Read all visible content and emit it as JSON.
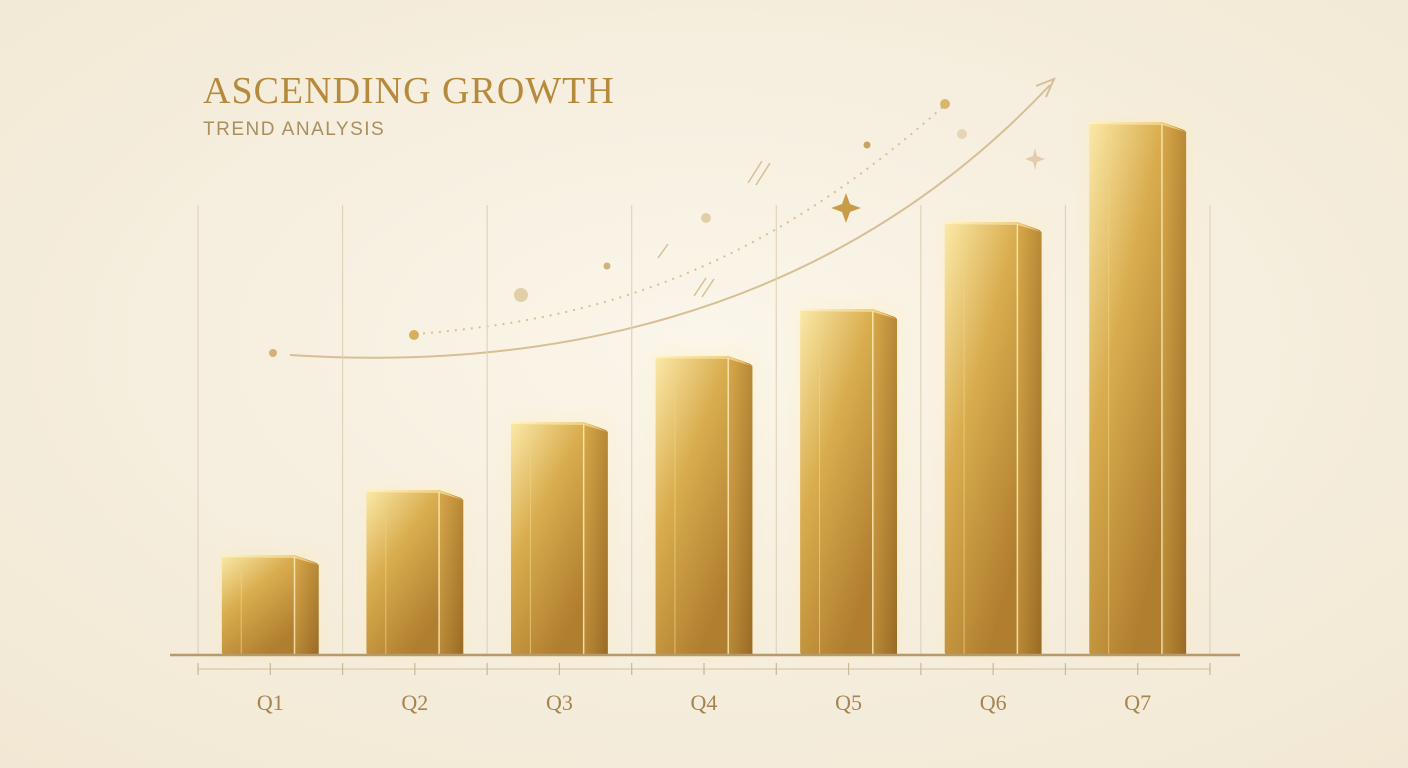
{
  "chart_data": {
    "type": "bar",
    "title": "ASCENDING GROWTH",
    "subtitle": "TREND ANALYSIS",
    "categories": [
      "Q1",
      "Q2",
      "Q3",
      "Q4",
      "Q5",
      "Q6",
      "Q7"
    ],
    "values": [
      100,
      165,
      233,
      299,
      346,
      433,
      533
    ],
    "color": "#d9ad4f",
    "ylim": [
      0,
      600
    ]
  }
}
